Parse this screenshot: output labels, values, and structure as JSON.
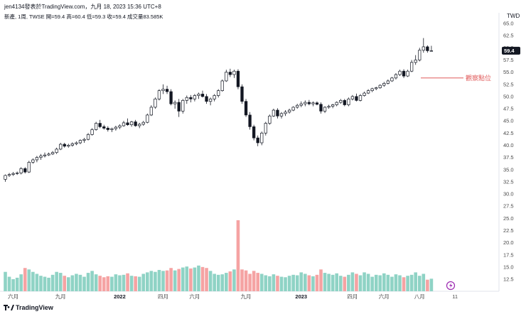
{
  "header": {
    "title": "jen4134發表於TradingView.com，九月 18, 2023 15:36 UTC+8",
    "currency": "TWD",
    "legend": "新產, 1周, TWSE  開=59.4  高=60.4  低=59.3  收=59.4  成交量83.585K"
  },
  "footer": {
    "logo_text": "TradingView"
  },
  "colors": {
    "up": "#26a69a",
    "down": "#ef5350",
    "up_volume": "#8fd3c5",
    "down_volume": "#f5a3a3",
    "annotation": "#e05a5a",
    "price_label_bg": "#131722"
  },
  "chart_data": {
    "type": "candlestick",
    "title": "新產, 1周, TWSE",
    "ylabel": "TWD",
    "ylim": [
      10,
      66
    ],
    "yticks": [
      "65.0",
      "62.5",
      "60.0",
      "57.5",
      "55.0",
      "52.5",
      "50.0",
      "47.5",
      "45.0",
      "42.5",
      "40.0",
      "37.5",
      "35.0",
      "32.5",
      "30.0",
      "27.5",
      "25.0",
      "22.5",
      "20.0",
      "17.5",
      "15.0",
      "12.5"
    ],
    "x_labels": [
      {
        "label": "六月",
        "index": 2,
        "bold": false
      },
      {
        "label": "九月",
        "index": 14,
        "bold": false
      },
      {
        "label": "2022",
        "index": 29,
        "bold": true
      },
      {
        "label": "四月",
        "index": 40,
        "bold": false
      },
      {
        "label": "六月",
        "index": 48,
        "bold": false
      },
      {
        "label": "九月",
        "index": 61,
        "bold": false
      },
      {
        "label": "2023",
        "index": 75,
        "bold": true
      },
      {
        "label": "四月",
        "index": 88,
        "bold": false
      },
      {
        "label": "六月",
        "index": 96,
        "bold": false
      },
      {
        "label": "八月",
        "index": 105,
        "bold": false
      },
      {
        "label": "11",
        "index": 114,
        "bold": false
      }
    ],
    "last_price": "59.4",
    "annotation": {
      "text": "觀察點位",
      "price": 53.8
    },
    "candles": [
      [
        33.0,
        34.0,
        32.5,
        33.8,
        14.0
      ],
      [
        33.8,
        34.3,
        33.5,
        34.0,
        13.0
      ],
      [
        34.0,
        34.5,
        33.7,
        34.2,
        12.5
      ],
      [
        34.2,
        34.6,
        33.9,
        34.3,
        12.8
      ],
      [
        34.3,
        35.5,
        34.0,
        35.2,
        13.5
      ],
      [
        35.2,
        35.5,
        34.2,
        34.5,
        14.8
      ],
      [
        34.5,
        36.8,
        34.3,
        36.5,
        14.5
      ],
      [
        36.5,
        37.3,
        36.2,
        37.0,
        14.0
      ],
      [
        37.0,
        37.8,
        36.5,
        37.5,
        13.6
      ],
      [
        37.5,
        38.2,
        37.0,
        37.8,
        13.2
      ],
      [
        37.8,
        38.5,
        37.5,
        38.0,
        13.0
      ],
      [
        38.0,
        38.5,
        37.8,
        38.2,
        12.8
      ],
      [
        38.2,
        38.8,
        38.0,
        38.5,
        13.4
      ],
      [
        38.5,
        39.5,
        38.2,
        39.2,
        14.0
      ],
      [
        39.2,
        40.5,
        39.0,
        40.2,
        13.8
      ],
      [
        40.2,
        40.5,
        39.5,
        39.8,
        13.2
      ],
      [
        39.8,
        40.3,
        39.5,
        40.0,
        12.9
      ],
      [
        40.0,
        40.6,
        39.7,
        40.3,
        13.3
      ],
      [
        40.3,
        40.8,
        40.0,
        40.5,
        13.6
      ],
      [
        40.5,
        41.2,
        40.2,
        41.0,
        13.4
      ],
      [
        41.0,
        41.5,
        40.5,
        41.2,
        13.0
      ],
      [
        41.2,
        42.5,
        41.0,
        42.2,
        13.8
      ],
      [
        42.2,
        43.5,
        42.0,
        43.2,
        14.2
      ],
      [
        43.2,
        44.8,
        43.0,
        44.5,
        13.5
      ],
      [
        44.5,
        45.2,
        43.5,
        43.8,
        13.2
      ],
      [
        43.8,
        44.2,
        43.2,
        43.5,
        12.9
      ],
      [
        43.5,
        43.9,
        42.8,
        43.2,
        13.1
      ],
      [
        43.2,
        43.6,
        42.7,
        43.4,
        13.0
      ],
      [
        43.4,
        44.0,
        43.0,
        43.7,
        13.5
      ],
      [
        43.7,
        44.3,
        43.3,
        44.0,
        13.3
      ],
      [
        44.0,
        45.0,
        43.8,
        44.6,
        13.4
      ],
      [
        44.6,
        45.5,
        44.0,
        44.2,
        13.7
      ],
      [
        44.2,
        45.0,
        43.8,
        44.8,
        13.2
      ],
      [
        44.8,
        45.2,
        43.8,
        44.0,
        13.1
      ],
      [
        44.0,
        44.6,
        43.5,
        44.3,
        13.0
      ],
      [
        44.3,
        45.0,
        44.0,
        44.7,
        13.6
      ],
      [
        44.7,
        46.5,
        44.5,
        46.2,
        13.9
      ],
      [
        46.2,
        48.2,
        46.0,
        47.8,
        14.2
      ],
      [
        47.8,
        49.8,
        47.5,
        49.5,
        14.0
      ],
      [
        49.5,
        51.5,
        49.2,
        51.2,
        14.4
      ],
      [
        51.2,
        52.5,
        50.5,
        51.5,
        14.2
      ],
      [
        51.5,
        52.2,
        50.5,
        51.0,
        14.3
      ],
      [
        51.0,
        51.5,
        48.2,
        48.5,
        14.8
      ],
      [
        48.5,
        49.2,
        47.5,
        48.8,
        14.3
      ],
      [
        48.8,
        49.5,
        45.8,
        47.0,
        14.6
      ],
      [
        47.0,
        49.5,
        46.5,
        49.2,
        14.9
      ],
      [
        49.2,
        50.2,
        48.5,
        49.8,
        15.1
      ],
      [
        49.8,
        50.3,
        48.8,
        49.5,
        14.7
      ],
      [
        49.5,
        50.5,
        49.0,
        50.2,
        14.9
      ],
      [
        50.2,
        50.8,
        49.5,
        50.5,
        15.3
      ],
      [
        50.5,
        51.2,
        49.8,
        50.0,
        15.0
      ],
      [
        50.0,
        50.5,
        48.5,
        49.0,
        14.8
      ],
      [
        49.0,
        49.8,
        48.2,
        49.5,
        14.2
      ],
      [
        49.5,
        50.5,
        49.0,
        50.2,
        13.6
      ],
      [
        50.2,
        51.5,
        49.8,
        51.2,
        13.4
      ],
      [
        51.2,
        53.5,
        51.0,
        53.2,
        13.5
      ],
      [
        53.2,
        55.5,
        53.0,
        55.0,
        13.8
      ],
      [
        55.0,
        55.7,
        54.0,
        54.5,
        14.1
      ],
      [
        54.5,
        55.5,
        53.8,
        55.2,
        14.5
      ],
      [
        55.2,
        55.6,
        51.5,
        52.0,
        24.6
      ],
      [
        52.0,
        52.5,
        48.5,
        49.0,
        14.5
      ],
      [
        49.0,
        49.5,
        45.8,
        46.2,
        14.3
      ],
      [
        46.2,
        46.8,
        43.2,
        43.8,
        13.6
      ],
      [
        43.8,
        44.2,
        41.0,
        41.5,
        14.2
      ],
      [
        41.5,
        42.0,
        39.8,
        40.5,
        13.8
      ],
      [
        40.5,
        42.8,
        40.0,
        42.5,
        13.6
      ],
      [
        42.5,
        44.8,
        42.0,
        44.5,
        13.3
      ],
      [
        44.5,
        46.3,
        44.2,
        46.0,
        13.1
      ],
      [
        46.0,
        47.5,
        45.8,
        47.2,
        13.5
      ],
      [
        47.2,
        47.6,
        45.5,
        46.0,
        13.2
      ],
      [
        46.0,
        46.8,
        45.5,
        46.5,
        13.0
      ],
      [
        46.5,
        47.2,
        46.0,
        46.8,
        12.9
      ],
      [
        46.8,
        47.5,
        46.5,
        47.2,
        13.2
      ],
      [
        47.2,
        48.0,
        47.0,
        47.8,
        13.4
      ],
      [
        47.8,
        48.5,
        47.5,
        48.2,
        13.3
      ],
      [
        48.2,
        49.0,
        47.8,
        48.5,
        13.9
      ],
      [
        48.5,
        49.2,
        48.0,
        48.8,
        13.6
      ],
      [
        48.8,
        49.3,
        48.2,
        48.5,
        13.3
      ],
      [
        48.5,
        49.0,
        48.0,
        48.7,
        13.1
      ],
      [
        48.7,
        49.0,
        48.2,
        48.4,
        13.4
      ],
      [
        48.4,
        48.8,
        46.5,
        47.0,
        14.5
      ],
      [
        47.0,
        48.0,
        46.6,
        47.8,
        13.8
      ],
      [
        47.8,
        48.3,
        47.5,
        48.0,
        13.6
      ],
      [
        48.0,
        48.5,
        47.6,
        48.3,
        13.4
      ],
      [
        48.3,
        49.0,
        48.0,
        48.8,
        13.7
      ],
      [
        48.8,
        49.5,
        48.5,
        49.2,
        13.2
      ],
      [
        49.2,
        49.5,
        48.0,
        48.3,
        13.0
      ],
      [
        48.3,
        49.8,
        48.0,
        49.5,
        13.4
      ],
      [
        49.5,
        50.3,
        49.2,
        50.0,
        13.9
      ],
      [
        50.0,
        50.6,
        49.0,
        49.2,
        13.6
      ],
      [
        49.2,
        50.5,
        49.0,
        50.2,
        13.3
      ],
      [
        50.2,
        51.0,
        50.0,
        50.7,
        13.9
      ],
      [
        50.7,
        51.5,
        50.5,
        51.2,
        13.6
      ],
      [
        51.2,
        51.8,
        50.9,
        51.6,
        13.0
      ],
      [
        51.6,
        52.0,
        51.3,
        51.8,
        13.4
      ],
      [
        51.8,
        52.5,
        51.6,
        52.3,
        13.3
      ],
      [
        52.3,
        53.0,
        52.0,
        52.7,
        13.7
      ],
      [
        52.7,
        53.5,
        52.5,
        53.2,
        13.4
      ],
      [
        53.2,
        54.0,
        53.0,
        53.8,
        13.0
      ],
      [
        53.8,
        54.8,
        53.5,
        54.5,
        13.5
      ],
      [
        54.5,
        55.5,
        54.2,
        55.2,
        13.3
      ],
      [
        55.2,
        55.6,
        53.8,
        54.2,
        12.9
      ],
      [
        54.2,
        55.5,
        54.0,
        55.2,
        13.2
      ],
      [
        55.2,
        57.5,
        55.0,
        57.0,
        13.4
      ],
      [
        57.0,
        58.5,
        56.5,
        57.5,
        13.9
      ],
      [
        57.5,
        60.0,
        57.2,
        59.5,
        13.2
      ],
      [
        59.5,
        62.0,
        59.0,
        60.2,
        13.6
      ],
      [
        60.2,
        60.5,
        59.0,
        59.4,
        12.4
      ],
      [
        59.4,
        60.4,
        59.3,
        59.4,
        12.6
      ]
    ]
  }
}
